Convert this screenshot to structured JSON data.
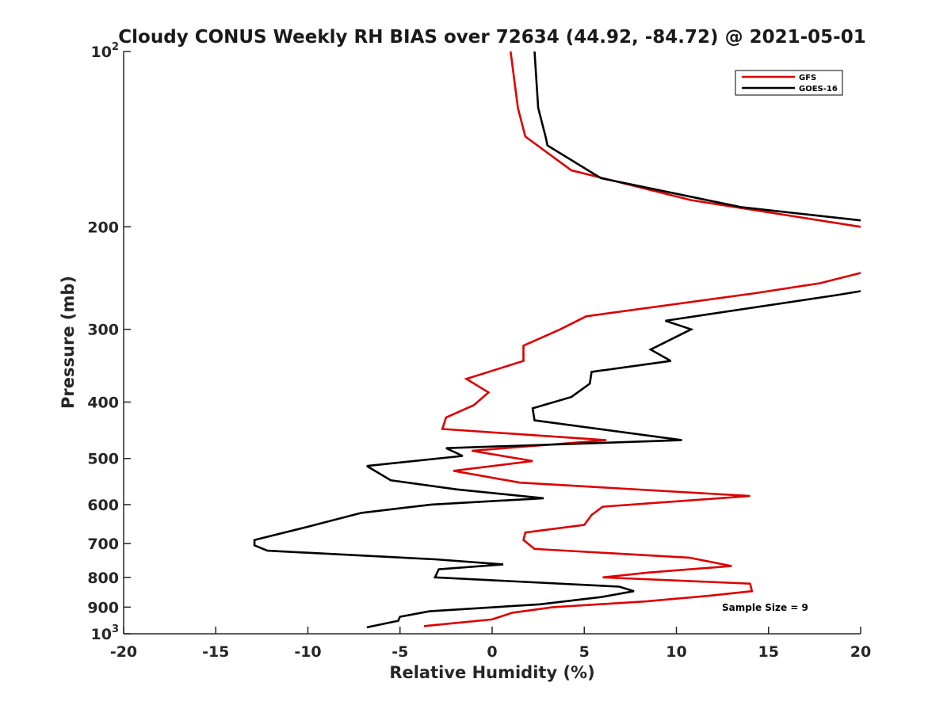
{
  "chart_data": {
    "type": "line",
    "title": "Cloudy CONUS Weekly RH BIAS over 72634 (44.92, -84.72) @ 2021-05-01",
    "xlabel": "Relative Humidity (%)",
    "ylabel": "Pressure (mb)",
    "xlim": [
      -20,
      20
    ],
    "ylim": [
      100,
      1000
    ],
    "y_scale": "log",
    "y_reversed": true,
    "grid": false,
    "legend_position": "top-right",
    "x_ticks": [
      -20,
      -15,
      -10,
      -5,
      0,
      5,
      10,
      15,
      20
    ],
    "x_tick_labels": [
      "-20",
      "-15",
      "-10",
      "-5",
      "0",
      "5",
      "10",
      "15",
      "20"
    ],
    "y_ticks": [
      100,
      200,
      300,
      400,
      500,
      600,
      700,
      800,
      900,
      1000
    ],
    "y_tick_labels": [
      {
        "base": "10",
        "sup": "2"
      },
      {
        "base": "200",
        "sup": ""
      },
      {
        "base": "300",
        "sup": ""
      },
      {
        "base": "400",
        "sup": ""
      },
      {
        "base": "500",
        "sup": ""
      },
      {
        "base": "600",
        "sup": ""
      },
      {
        "base": "700",
        "sup": ""
      },
      {
        "base": "800",
        "sup": ""
      },
      {
        "base": "900",
        "sup": ""
      },
      {
        "base": "10",
        "sup": "3"
      }
    ],
    "annotation": "Sample Size = 9",
    "series": [
      {
        "name": "GFS",
        "color": "#dd0000",
        "segments": [
          {
            "x": [
              1.0,
              1.4,
              1.8,
              4.3,
              10.8,
              20
            ],
            "y": [
              100,
              125,
              140,
              160,
              180,
              200
            ]
          },
          {
            "x": [
              20,
              17.8,
              14.3,
              5.1,
              3.7,
              1.7,
              1.7,
              -1.4,
              -0.2,
              -1.0,
              -2.5,
              -2.7,
              6.2,
              -1.1,
              2.2,
              -2.1,
              1.5,
              14.0,
              6.0,
              5.4,
              5.0,
              1.8,
              1.7,
              2.3,
              10.7,
              13.0,
              8.5,
              6.0,
              14.0,
              14.1,
              11.8,
              8.3,
              3.3,
              1.1,
              0.0,
              -3.7
            ],
            "y": [
              240,
              250,
              260,
              285,
              300,
              320,
              340,
              365,
              385,
              405,
              425,
              445,
              465,
              485,
              505,
              525,
              550,
              580,
              605,
              625,
              650,
              670,
              690,
              715,
              740,
              765,
              785,
              800,
              820,
              845,
              860,
              880,
              900,
              920,
              945,
              970
            ]
          }
        ]
      },
      {
        "name": "GOES-16",
        "color": "#000000",
        "segments": [
          {
            "x": [
              2.3,
              2.5,
              2.9,
              3.0,
              5.9,
              13.5,
              20
            ],
            "y": [
              100,
              125,
              140,
              145,
              165,
              185,
              195
            ]
          },
          {
            "x": [
              20,
              18.7,
              9.4,
              10.8,
              8.6,
              9.7,
              5.4,
              5.3,
              4.3,
              2.2,
              2.3,
              10.3,
              -2.5,
              -1.6,
              -6.8,
              -5.5,
              -1.9,
              2.8,
              -3.3,
              -7.1,
              -10.0,
              -12.9,
              -12.9,
              -12.2,
              -3.1,
              0.6,
              -2.9,
              -3.1,
              6.9,
              7.7,
              5.9,
              2.6,
              -3.4,
              -5.0,
              -5.1,
              -6.8
            ],
            "y": [
              258,
              262,
              290,
              300,
              325,
              340,
              355,
              372,
              392,
              410,
              430,
              465,
              480,
              495,
              515,
              545,
              565,
              585,
              600,
              620,
              655,
              690,
              705,
              720,
              745,
              760,
              775,
              800,
              830,
              845,
              865,
              890,
              915,
              935,
              950,
              975
            ]
          }
        ]
      }
    ]
  }
}
